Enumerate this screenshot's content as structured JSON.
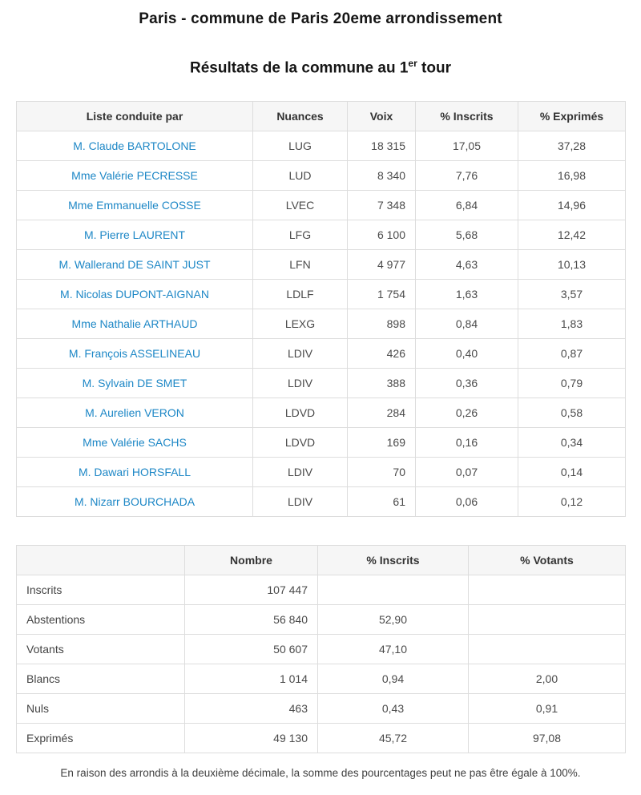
{
  "page": {
    "title": "Paris - commune de Paris 20eme arrondissement",
    "subtitle_prefix": "Résultats de la commune au 1",
    "subtitle_sup": "er",
    "subtitle_suffix": " tour",
    "footnote": "En raison des arrondis à la deuxième décimale, la somme des pourcentages peut ne pas être égale à 100%."
  },
  "colors": {
    "candidate_link_blue": "#1d87c6",
    "table_header_bg": "#f6f6f6",
    "table_border": "#dddddd"
  },
  "results_table": {
    "headers": [
      "Liste conduite par",
      "Nuances",
      "Voix",
      "% Inscrits",
      "% Exprimés"
    ],
    "rows": [
      {
        "liste": "M. Claude BARTOLONE",
        "nuance": "LUG",
        "voix": "18 315",
        "pct_inscrits": "17,05",
        "pct_exprimes": "37,28"
      },
      {
        "liste": "Mme Valérie PECRESSE",
        "nuance": "LUD",
        "voix": "8 340",
        "pct_inscrits": "7,76",
        "pct_exprimes": "16,98"
      },
      {
        "liste": "Mme Emmanuelle COSSE",
        "nuance": "LVEC",
        "voix": "7 348",
        "pct_inscrits": "6,84",
        "pct_exprimes": "14,96"
      },
      {
        "liste": "M. Pierre LAURENT",
        "nuance": "LFG",
        "voix": "6 100",
        "pct_inscrits": "5,68",
        "pct_exprimes": "12,42"
      },
      {
        "liste": "M. Wallerand DE SAINT JUST",
        "nuance": "LFN",
        "voix": "4 977",
        "pct_inscrits": "4,63",
        "pct_exprimes": "10,13"
      },
      {
        "liste": "M. Nicolas DUPONT-AIGNAN",
        "nuance": "LDLF",
        "voix": "1 754",
        "pct_inscrits": "1,63",
        "pct_exprimes": "3,57"
      },
      {
        "liste": "Mme Nathalie ARTHAUD",
        "nuance": "LEXG",
        "voix": "898",
        "pct_inscrits": "0,84",
        "pct_exprimes": "1,83"
      },
      {
        "liste": "M. François ASSELINEAU",
        "nuance": "LDIV",
        "voix": "426",
        "pct_inscrits": "0,40",
        "pct_exprimes": "0,87"
      },
      {
        "liste": "M. Sylvain DE SMET",
        "nuance": "LDIV",
        "voix": "388",
        "pct_inscrits": "0,36",
        "pct_exprimes": "0,79"
      },
      {
        "liste": "M. Aurelien VERON",
        "nuance": "LDVD",
        "voix": "284",
        "pct_inscrits": "0,26",
        "pct_exprimes": "0,58"
      },
      {
        "liste": "Mme Valérie SACHS",
        "nuance": "LDVD",
        "voix": "169",
        "pct_inscrits": "0,16",
        "pct_exprimes": "0,34"
      },
      {
        "liste": "M. Dawari HORSFALL",
        "nuance": "LDIV",
        "voix": "70",
        "pct_inscrits": "0,07",
        "pct_exprimes": "0,14"
      },
      {
        "liste": "M. Nizarr BOURCHADA",
        "nuance": "LDIV",
        "voix": "61",
        "pct_inscrits": "0,06",
        "pct_exprimes": "0,12"
      }
    ]
  },
  "participation_table": {
    "headers": [
      "",
      "Nombre",
      "% Inscrits",
      "% Votants"
    ],
    "rows": [
      {
        "label": "Inscrits",
        "nombre": "107 447",
        "pct_inscrits": "",
        "pct_votants": ""
      },
      {
        "label": "Abstentions",
        "nombre": "56 840",
        "pct_inscrits": "52,90",
        "pct_votants": ""
      },
      {
        "label": "Votants",
        "nombre": "50 607",
        "pct_inscrits": "47,10",
        "pct_votants": ""
      },
      {
        "label": "Blancs",
        "nombre": "1 014",
        "pct_inscrits": "0,94",
        "pct_votants": "2,00"
      },
      {
        "label": "Nuls",
        "nombre": "463",
        "pct_inscrits": "0,43",
        "pct_votants": "0,91"
      },
      {
        "label": "Exprimés",
        "nombre": "49 130",
        "pct_inscrits": "45,72",
        "pct_votants": "97,08"
      }
    ]
  }
}
